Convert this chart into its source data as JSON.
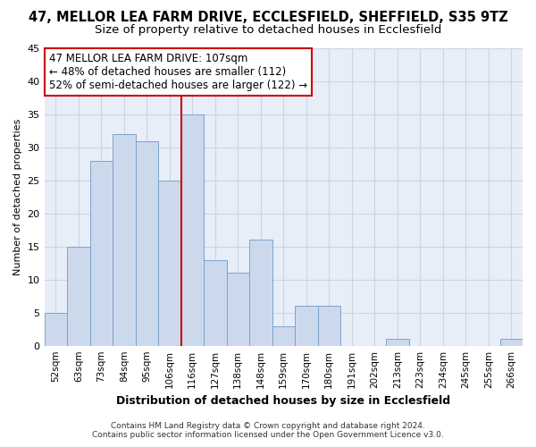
{
  "title": "47, MELLOR LEA FARM DRIVE, ECCLESFIELD, SHEFFIELD, S35 9TZ",
  "subtitle": "Size of property relative to detached houses in Ecclesfield",
  "xlabel": "Distribution of detached houses by size in Ecclesfield",
  "ylabel": "Number of detached properties",
  "bar_labels": [
    "52sqm",
    "63sqm",
    "73sqm",
    "84sqm",
    "95sqm",
    "106sqm",
    "116sqm",
    "127sqm",
    "138sqm",
    "148sqm",
    "159sqm",
    "170sqm",
    "180sqm",
    "191sqm",
    "202sqm",
    "213sqm",
    "223sqm",
    "234sqm",
    "245sqm",
    "255sqm",
    "266sqm"
  ],
  "bar_values": [
    5,
    15,
    28,
    32,
    31,
    25,
    35,
    13,
    11,
    16,
    3,
    6,
    6,
    0,
    0,
    1,
    0,
    0,
    0,
    0,
    1
  ],
  "bar_color": "#ccd9ed",
  "bar_edge_color": "#7ba3cc",
  "vline_x": 5.5,
  "vline_color": "#cc0000",
  "ylim": [
    0,
    45
  ],
  "yticks": [
    0,
    5,
    10,
    15,
    20,
    25,
    30,
    35,
    40,
    45
  ],
  "annotation_title": "47 MELLOR LEA FARM DRIVE: 107sqm",
  "annotation_line1": "← 48% of detached houses are smaller (112)",
  "annotation_line2": "52% of semi-detached houses are larger (122) →",
  "footer_line1": "Contains HM Land Registry data © Crown copyright and database right 2024.",
  "footer_line2": "Contains public sector information licensed under the Open Government Licence v3.0.",
  "bg_color": "#e8eef8",
  "grid_color": "#c8d4e8",
  "title_fontsize": 10.5,
  "subtitle_fontsize": 9.5,
  "annot_fontsize": 8.5,
  "ylabel_fontsize": 8,
  "xlabel_fontsize": 9
}
